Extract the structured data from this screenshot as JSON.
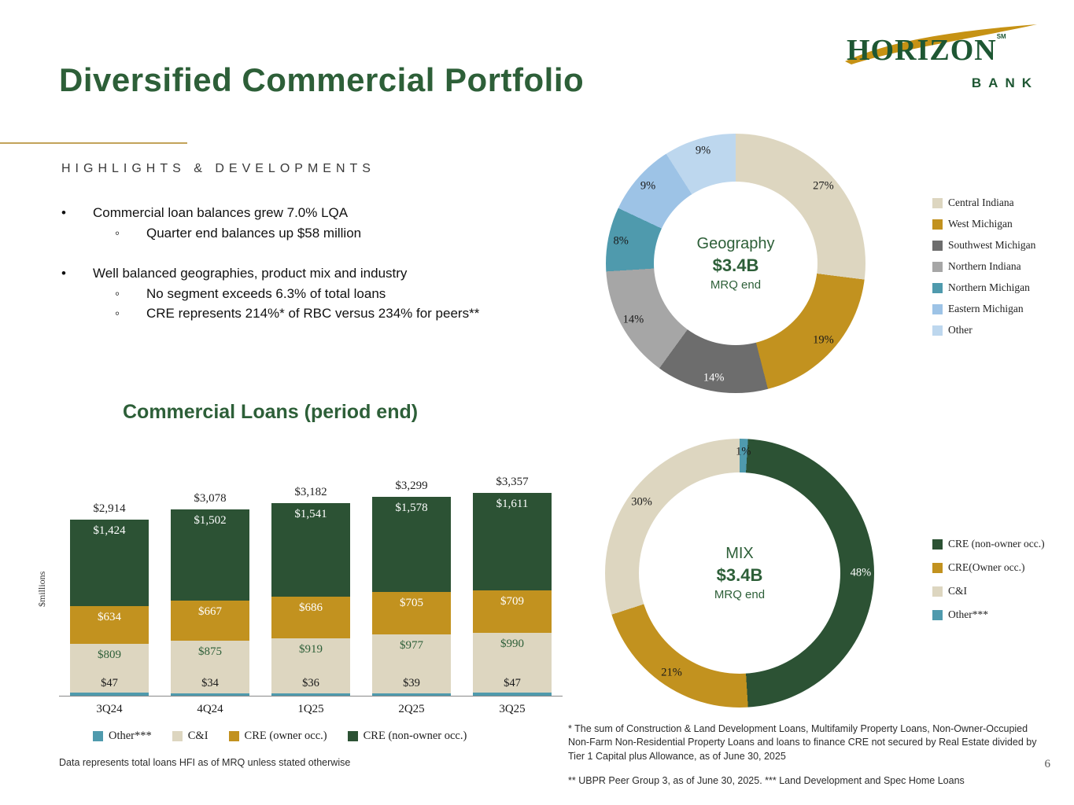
{
  "slide": {
    "title": "Diversified Commercial Portfolio",
    "page_number": "6"
  },
  "logo": {
    "name": "HORIZON",
    "sm": "SM",
    "sub": "BANK"
  },
  "highlights": {
    "heading": "HIGHLIGHTS & DEVELOPMENTS",
    "items": [
      {
        "level": 1,
        "text": "Commercial loan balances grew 7.0% LQA"
      },
      {
        "level": 2,
        "text": "Quarter end balances up $58 million"
      },
      {
        "level": 1,
        "text": "Well balanced geographies, product mix and industry"
      },
      {
        "level": 2,
        "text": "No segment exceeds 6.3% of total loans"
      },
      {
        "level": 2,
        "text": "CRE represents 214%* of RBC versus 234% for peers**"
      }
    ]
  },
  "footnotes": {
    "left": "Data represents total loans HFI as of MRQ unless stated otherwise",
    "right_1": "* The sum of Construction & Land Development Loans, Multifamily Property Loans, Non-Owner-Occupied Non-Farm Non-Residential Property Loans and loans to finance CRE not secured by Real Estate divided by Tier 1 Capital plus Allowance, as of June 30, 2025",
    "right_2": "** UBPR Peer Group 3, as of June 30, 2025. *** Land Development and Spec Home Loans"
  },
  "colors": {
    "brand_green": "#2d5f38",
    "bar_dark_green": "#2c5234",
    "gold": "#c2921f",
    "cream": "#ddd6c0",
    "dark_gray": "#6d6d6d",
    "light_gray": "#a6a6a6",
    "teal": "#4f9aad",
    "light_blue": "#9dc3e6",
    "pale_blue": "#bdd7ee"
  },
  "chart_data": [
    {
      "type": "pie",
      "subtype": "donut",
      "name": "geography",
      "center_label": {
        "line1": "Geography",
        "line2": "$3.4B",
        "line3": "MRQ end"
      },
      "legend_position": "right",
      "segments": [
        {
          "label": "Central Indiana",
          "value": 27,
          "color": "#ddd6c0",
          "label_color": "#1a1a1a"
        },
        {
          "label": "West Michigan",
          "value": 19,
          "color": "#c2921f",
          "label_color": "#1a1a1a"
        },
        {
          "label": "Southwest Michigan",
          "value": 14,
          "color": "#6d6d6d",
          "label_color": "#ffffff"
        },
        {
          "label": "Northern Indiana",
          "value": 14,
          "color": "#a6a6a6",
          "label_color": "#1a1a1a"
        },
        {
          "label": "Northern Michigan",
          "value": 8,
          "color": "#4f9aad",
          "label_color": "#1a1a1a"
        },
        {
          "label": "Eastern Michigan",
          "value": 9,
          "color": "#9dc3e6",
          "label_color": "#1a1a1a"
        },
        {
          "label": "Other",
          "value": 9,
          "color": "#bdd7ee",
          "label_color": "#1a1a1a"
        }
      ]
    },
    {
      "type": "bar",
      "subtype": "stacked",
      "name": "commercial-loans",
      "title": "Commercial Loans (period end)",
      "ylabel": "$millions",
      "categories": [
        "3Q24",
        "4Q24",
        "1Q25",
        "2Q25",
        "3Q25"
      ],
      "totals": [
        2914,
        3078,
        3182,
        3299,
        3357
      ],
      "total_labels": [
        "$2,914",
        "$3,078",
        "$3,182",
        "$3,299",
        "$3,357"
      ],
      "series": [
        {
          "name": "Other***",
          "color": "#4f9aad",
          "label_color": "#1a1a1a",
          "values": [
            47,
            34,
            36,
            39,
            47
          ],
          "labels": [
            "$47",
            "$34",
            "$36",
            "$39",
            "$47"
          ]
        },
        {
          "name": "C&I",
          "color": "#ddd6c0",
          "label_color": "#2d5f38",
          "values": [
            809,
            875,
            919,
            977,
            990
          ],
          "labels": [
            "$809",
            "$875",
            "$919",
            "$977",
            "$990"
          ]
        },
        {
          "name": "CRE (owner occ.)",
          "color": "#c2921f",
          "label_color": "#ffffff",
          "values": [
            634,
            667,
            686,
            705,
            709
          ],
          "labels": [
            "$634",
            "$667",
            "$686",
            "$705",
            "$709"
          ]
        },
        {
          "name": "CRE (non-owner occ.)",
          "color": "#2c5234",
          "label_color": "#ffffff",
          "values": [
            1424,
            1502,
            1541,
            1578,
            1611
          ],
          "labels": [
            "$1,424",
            "$1,502",
            "$1,541",
            "$1,578",
            "$1,611"
          ]
        }
      ],
      "legend_position": "bottom",
      "grid": false
    },
    {
      "type": "pie",
      "subtype": "donut",
      "name": "mix",
      "center_label": {
        "line1": "MIX",
        "line2": "$3.4B",
        "line3": "MRQ end"
      },
      "legend_position": "right",
      "segments": [
        {
          "label": "Other***",
          "value": 1,
          "color": "#4f9aad",
          "label_color": "#1a1a1a",
          "legend_order": 4
        },
        {
          "label": "CRE (non-owner occ.)",
          "value": 48,
          "color": "#2c5234",
          "label_color": "#ffffff",
          "legend_order": 1
        },
        {
          "label": "CRE(Owner occ.)",
          "value": 21,
          "color": "#c2921f",
          "label_color": "#1a1a1a",
          "legend_order": 2
        },
        {
          "label": "C&I",
          "value": 30,
          "color": "#ddd6c0",
          "label_color": "#1a1a1a",
          "legend_order": 3
        }
      ]
    }
  ]
}
